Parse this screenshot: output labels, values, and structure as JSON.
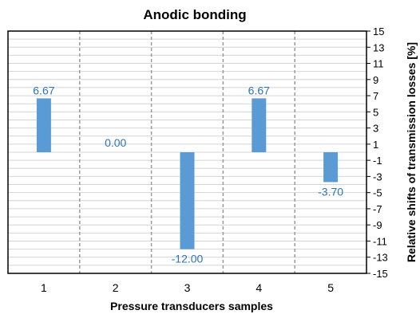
{
  "chart_data": {
    "type": "bar",
    "title": "Anodic  bonding",
    "xlabel": "Pressure transducers samples",
    "ylabel": "Relative shifts of transmission losses [%]",
    "categories": [
      "1",
      "2",
      "3",
      "4",
      "5"
    ],
    "values": [
      6.67,
      0.0,
      -12.0,
      6.67,
      -3.7
    ],
    "data_labels": [
      "6.67",
      "0.00",
      "-12.00",
      "6.67",
      "-3.70"
    ],
    "ylim": [
      -15,
      15
    ],
    "y_ticks": [
      "15",
      "13",
      "11",
      "9",
      "7",
      "5",
      "3",
      "1",
      "-1",
      "-3",
      "-5",
      "-7",
      "-9",
      "-11",
      "-13",
      "-15"
    ],
    "y_axis_side": "right",
    "grid": true,
    "legend": "none",
    "bar_color": "#5b9bd5",
    "label_color": "#2e75b6"
  }
}
